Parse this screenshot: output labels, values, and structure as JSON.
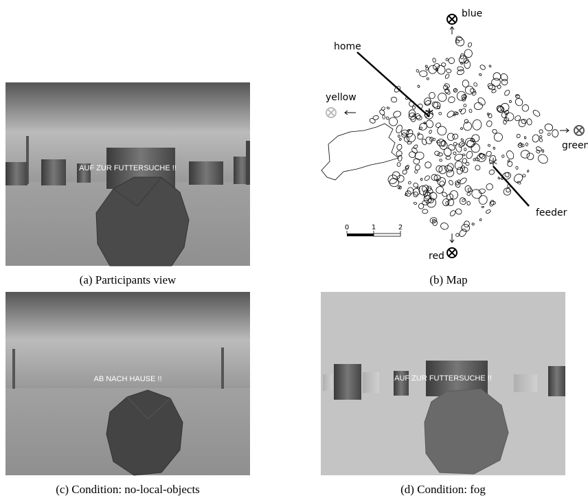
{
  "panels": [
    {
      "caption": "(a) Participants view",
      "overlay_text": "AUF ZUR FUTTERSUCHE !!"
    },
    {
      "caption": "(b) Map",
      "labels": {
        "blue": "blue",
        "home": "home",
        "yellow": "yellow",
        "green": "green",
        "feeder": "feeder",
        "red": "red"
      },
      "scale": [
        0,
        1,
        2
      ]
    },
    {
      "caption": "(c) Condition: no-local-objects",
      "overlay_text": "AB NACH HAUSE !!"
    },
    {
      "caption": "(d) Condition: fog",
      "overlay_text": "AUF ZUR FUTTERSUCHE !!"
    }
  ]
}
